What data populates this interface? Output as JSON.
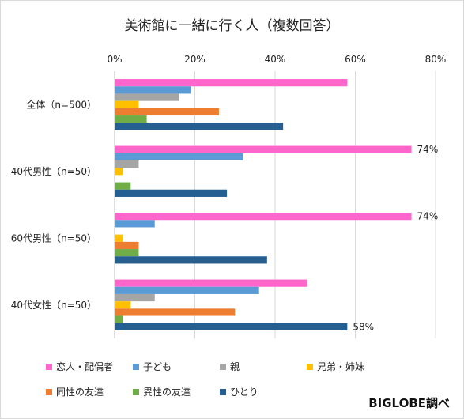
{
  "chart_data": {
    "type": "bar",
    "orientation": "horizontal",
    "title": "美術館に一緒に行く人（複数回答）",
    "xlim": [
      0,
      80
    ],
    "ticks": [
      "0%",
      "20%",
      "40%",
      "60%",
      "80%"
    ],
    "grid": true,
    "legend_position": "bottom",
    "categories": [
      "全体（n=500）",
      "40代男性（n=50）",
      "60代男性（n=50）",
      "40代女性（n=50）"
    ],
    "series": [
      {
        "name": "恋人・配偶者",
        "color": "#ff66cc",
        "values": [
          58,
          74,
          74,
          48
        ]
      },
      {
        "name": "子ども",
        "color": "#5b9bd5",
        "values": [
          19,
          32,
          10,
          36
        ]
      },
      {
        "name": "親",
        "color": "#a5a5a5",
        "values": [
          16,
          6,
          0,
          10
        ]
      },
      {
        "name": "兄弟・姉妹",
        "color": "#ffc000",
        "values": [
          6,
          2,
          2,
          4
        ]
      },
      {
        "name": "同性の友達",
        "color": "#ed7d31",
        "values": [
          26,
          0,
          6,
          30
        ]
      },
      {
        "name": "異性の友達",
        "color": "#70ad47",
        "values": [
          8,
          4,
          6,
          2
        ]
      },
      {
        "name": "ひとり",
        "color": "#255e91",
        "values": [
          42,
          28,
          38,
          58
        ]
      }
    ],
    "data_labels": [
      {
        "category_index": 1,
        "series_index": 0,
        "text": "74%"
      },
      {
        "category_index": 2,
        "series_index": 0,
        "text": "74%"
      },
      {
        "category_index": 3,
        "series_index": 6,
        "text": "58%"
      }
    ]
  },
  "source": "BIGLOBE調べ"
}
